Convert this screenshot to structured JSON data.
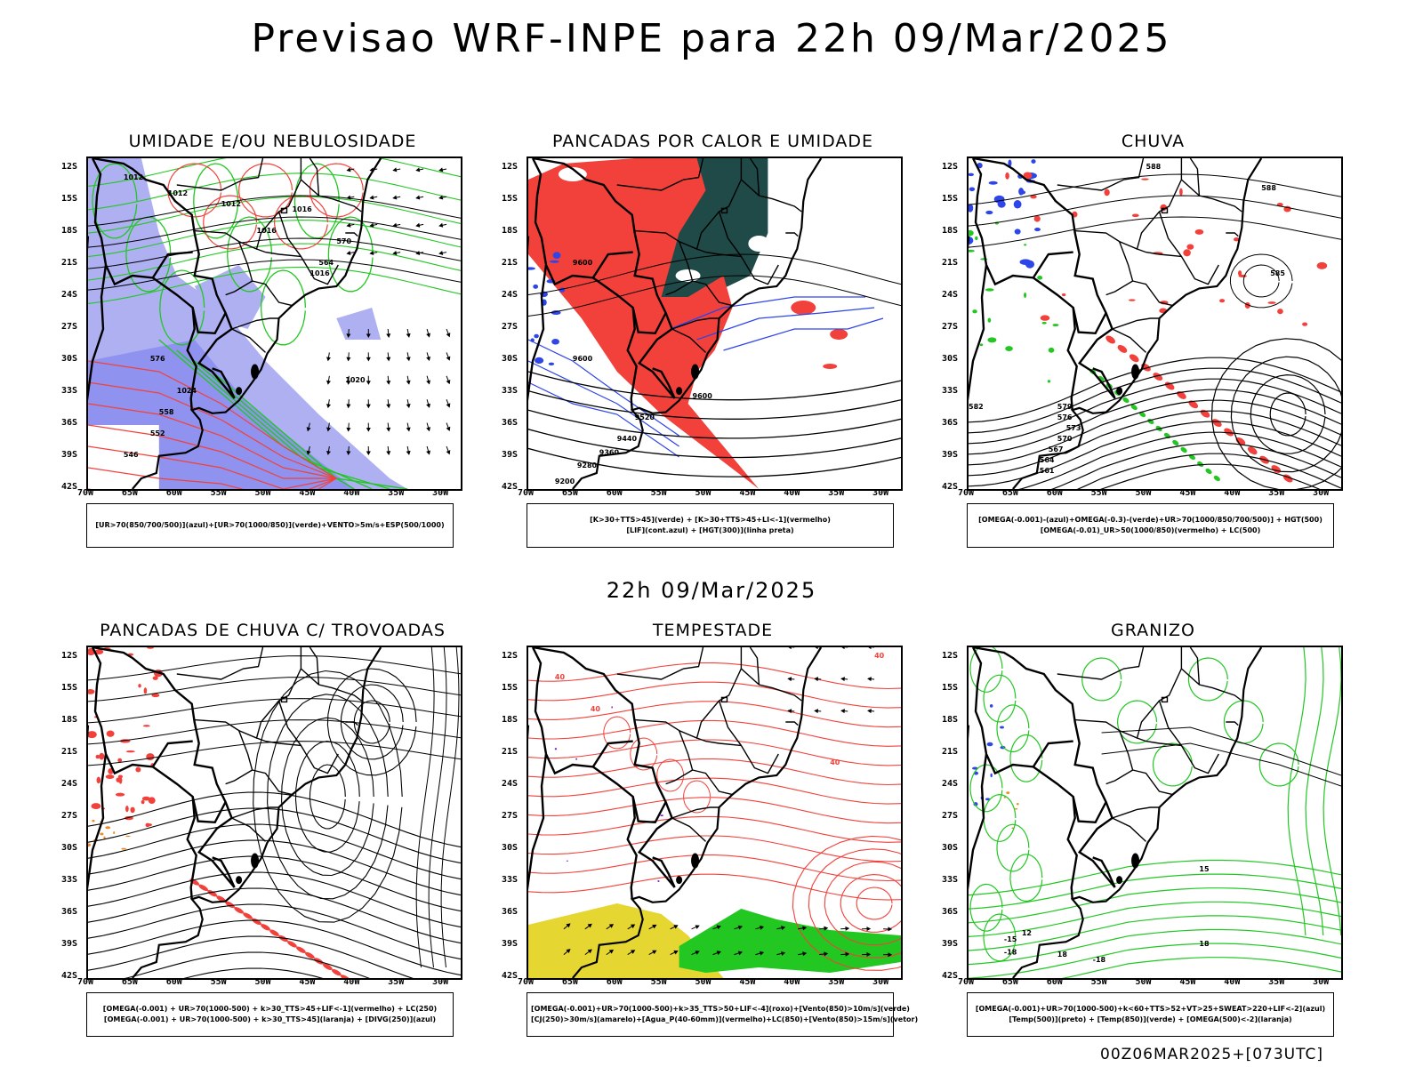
{
  "title": "Previsao WRF-INPE  para 22h 09/Mar/2025",
  "mid_label": "22h 09/Mar/2025",
  "footer": "00Z06MAR2025+[073UTC]",
  "lat_labels": [
    "12S",
    "15S",
    "18S",
    "21S",
    "24S",
    "27S",
    "30S",
    "33S",
    "36S",
    "39S",
    "42S"
  ],
  "lon_labels": [
    "70W",
    "65W",
    "60W",
    "55W",
    "50W",
    "45W",
    "40W",
    "35W",
    "30W"
  ],
  "panels": [
    {
      "title": "UMIDADE E/OU NEBULOSIDADE",
      "legend": [
        "[UR>70(850/700/500)](azul)+[UR>70(1000/850)](verde)+VENTO>5m/s+ESP(500/1000)"
      ],
      "contour_labels": [
        "1012",
        "1012",
        "1012",
        "1016",
        "1016",
        "1016",
        "1020",
        "1024",
        "576",
        "570",
        "564",
        "558",
        "552",
        "546"
      ]
    },
    {
      "title": "PANCADAS POR CALOR E UMIDADE",
      "legend": [
        "[K>30+TTS>45](verde) + [K>30+TTS>45+LI<-1](vermelho)",
        "[LIF](cont.azul) + [HGT(300)](linha preta)"
      ],
      "contour_labels": [
        "9600",
        "9600",
        "9600",
        "9520",
        "9440",
        "9360",
        "9280",
        "9200"
      ]
    },
    {
      "title": "CHUVA",
      "legend": [
        "[OMEGA(-0.001)-(azul)+OMEGA(-0.3)-(verde)+UR>70(1000/850/700/500)] + HGT(500)",
        "[OMEGA(-0.01)_UR>50(1000/850)(vermelho) + LC(500)"
      ],
      "contour_labels": [
        "588",
        "588",
        "585",
        "582",
        "579",
        "576",
        "573",
        "570",
        "567",
        "564",
        "561"
      ]
    },
    {
      "title": "PANCADAS DE CHUVA C/ TROVOADAS",
      "legend": [
        "[OMEGA(-0.001) + UR>70(1000-500) + k>30_TTS>45+LIF<-1](vermelho) + LC(250)",
        "[OMEGA(-0.001) + UR>70(1000-500) + k>30_TTS>45](laranja) + [DIVG(250)](azul)"
      ],
      "contour_labels": []
    },
    {
      "title": "TEMPESTADE",
      "legend": [
        "[OMEGA(-0.001)+UR>70(1000-500)+k>35_TTS>50+LIF<-4](roxo)+[Vento(850)>10m/s](verde)",
        "[CJ(250)>30m/s](amarelo)+[Agua_P(40-60mm)](vermelho)+LC(850)+[Vento(850)>15m/s](vetor)"
      ],
      "contour_labels": [
        "40",
        "40",
        "40",
        "40"
      ]
    },
    {
      "title": "GRANIZO",
      "legend": [
        "[OMEGA(-0.001)+UR>70(1000-500)+k<60+TTS>52+VT>25+SWEAT>220+LIF<-2](azul)",
        "[Temp(500)](preto) + [Temp(850)](verde) + [OMEGA(500)<-2](laranja)"
      ],
      "contour_labels": [
        "-15",
        "-18",
        "-18",
        "12",
        "15",
        "18",
        "18"
      ]
    }
  ],
  "colors": {
    "red": "#f2413b",
    "green": "#22c722",
    "blue": "#2e46e8",
    "lavender": "#aeb0f2",
    "darkteal": "#1f4a48",
    "yellow": "#e6d632",
    "orange": "#f08a22",
    "purple": "#7a1fd0"
  }
}
